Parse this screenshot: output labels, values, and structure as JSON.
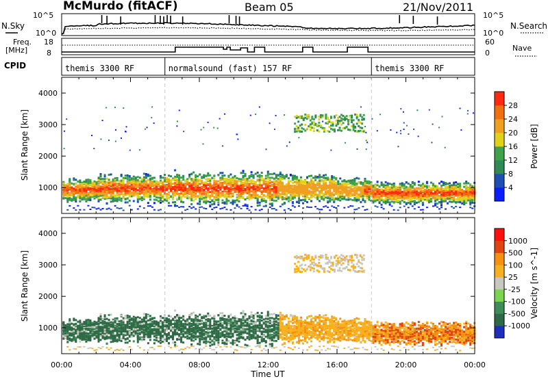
{
  "header": {
    "station": "McMurdo (fitACF)",
    "beam": "Beam 05",
    "date": "21/Nov/2011"
  },
  "top_panels": {
    "nsky_label": "N.Sky",
    "nsearch_label": "N.Search",
    "freq_label_1": "Freq.",
    "freq_label_2": "[MHz]",
    "nave_label": "Nave",
    "cpid_label": "CPID",
    "noise_ticks_left": [
      "10^5",
      "10^0"
    ],
    "noise_ticks_right": [
      "10^5",
      "10^0"
    ],
    "freq_ticks_left": [
      "18",
      "8"
    ],
    "nave_ticks_right": [
      "60",
      "0"
    ]
  },
  "cpid_segments": [
    {
      "label": "themis 3300 RF",
      "start": 0,
      "end": 6
    },
    {
      "label": "normalsound (fast) 157 RF",
      "start": 6,
      "end": 18
    },
    {
      "label": "themis 3300 RF",
      "start": 18,
      "end": 24
    }
  ],
  "chart_data": [
    {
      "type": "heatmap",
      "name": "power",
      "ylabel": "Slant Range [km]",
      "ylim": [
        180,
        4500
      ],
      "xlim": [
        0,
        24
      ],
      "yticks": [
        1000,
        2000,
        3000,
        4000
      ],
      "colorbar": {
        "label": "Power [dB]",
        "ticks": [
          "4",
          "8",
          "12",
          "16",
          "20",
          "24",
          "28"
        ],
        "colors": [
          "#0a1eff",
          "#1f4fb5",
          "#2f8a55",
          "#3fa24a",
          "#e0d21a",
          "#f0a020",
          "#f07010",
          "#ff2a10"
        ]
      }
    },
    {
      "type": "heatmap",
      "name": "velocity",
      "ylabel": "Slant Range [km]",
      "xlabel": "Time UT",
      "ylim": [
        180,
        4500
      ],
      "xlim": [
        0,
        24
      ],
      "yticks": [
        1000,
        2000,
        3000,
        4000
      ],
      "xtick_labels": [
        "00:00",
        "04:00",
        "08:00",
        "12:00",
        "16:00",
        "20:00",
        "00:00"
      ],
      "colorbar": {
        "label": "Velocity [m s^-1]",
        "ticks": [
          "1000",
          "500",
          "100",
          "25",
          "-25",
          "-100",
          "-500",
          "-1000"
        ],
        "colors": [
          "#1e2fc0",
          "#2e6a45",
          "#3e8d58",
          "#7cd350",
          "#c8c8c0",
          "#f7b020",
          "#f59010",
          "#e04410",
          "#ff1010"
        ]
      }
    }
  ]
}
